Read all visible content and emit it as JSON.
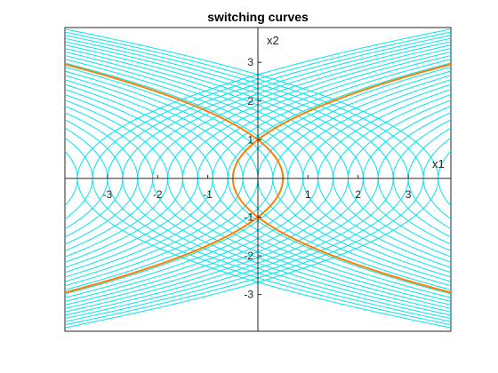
{
  "chart_data": {
    "type": "line",
    "title": "switching curves",
    "xlabel": "x1",
    "ylabel": "x2",
    "xlim": [
      -3.85,
      3.85
    ],
    "ylim": [
      -3.95,
      3.9
    ],
    "xticks": [
      -3,
      -2,
      -1,
      1,
      2,
      3
    ],
    "yticks": [
      -3,
      -2,
      -1,
      1,
      2,
      3
    ],
    "xtick_labels": [
      "-3",
      "-2",
      "-1",
      "1",
      "2",
      "3"
    ],
    "ytick_labels": [
      "-3",
      "-2",
      "-1",
      "1",
      "2",
      "3"
    ],
    "axes_through_origin": true,
    "box": true,
    "grid": false,
    "trajectory_families": [
      {
        "relation": "x1 = x2^2/2 + c",
        "color": "#00e5ee",
        "c_values": [
          -3.6,
          -3.3,
          -3.0,
          -2.7,
          -2.4,
          -2.1,
          -1.8,
          -1.5,
          -1.2,
          -0.9,
          -0.6,
          -0.3,
          0.0,
          0.3,
          0.6,
          0.9,
          1.2,
          1.5,
          1.8,
          2.1,
          2.4,
          2.7,
          3.0,
          3.3,
          3.6
        ]
      },
      {
        "relation": "x1 = -x2^2/2 + c",
        "color": "#00e5ee",
        "c_values": [
          -3.6,
          -3.3,
          -3.0,
          -2.7,
          -2.4,
          -2.1,
          -1.8,
          -1.5,
          -1.2,
          -0.9,
          -0.6,
          -0.3,
          0.0,
          0.3,
          0.6,
          0.9,
          1.2,
          1.5,
          1.8,
          2.1,
          2.4,
          2.7,
          3.0,
          3.3,
          3.6
        ]
      }
    ],
    "switching_curves": [
      {
        "relation": "x1 = x2^2/2 - 0.5",
        "color": "#ff7f00"
      },
      {
        "relation": "x1 = -x2^2/2 + 0.5",
        "color": "#ff7f00"
      }
    ]
  }
}
